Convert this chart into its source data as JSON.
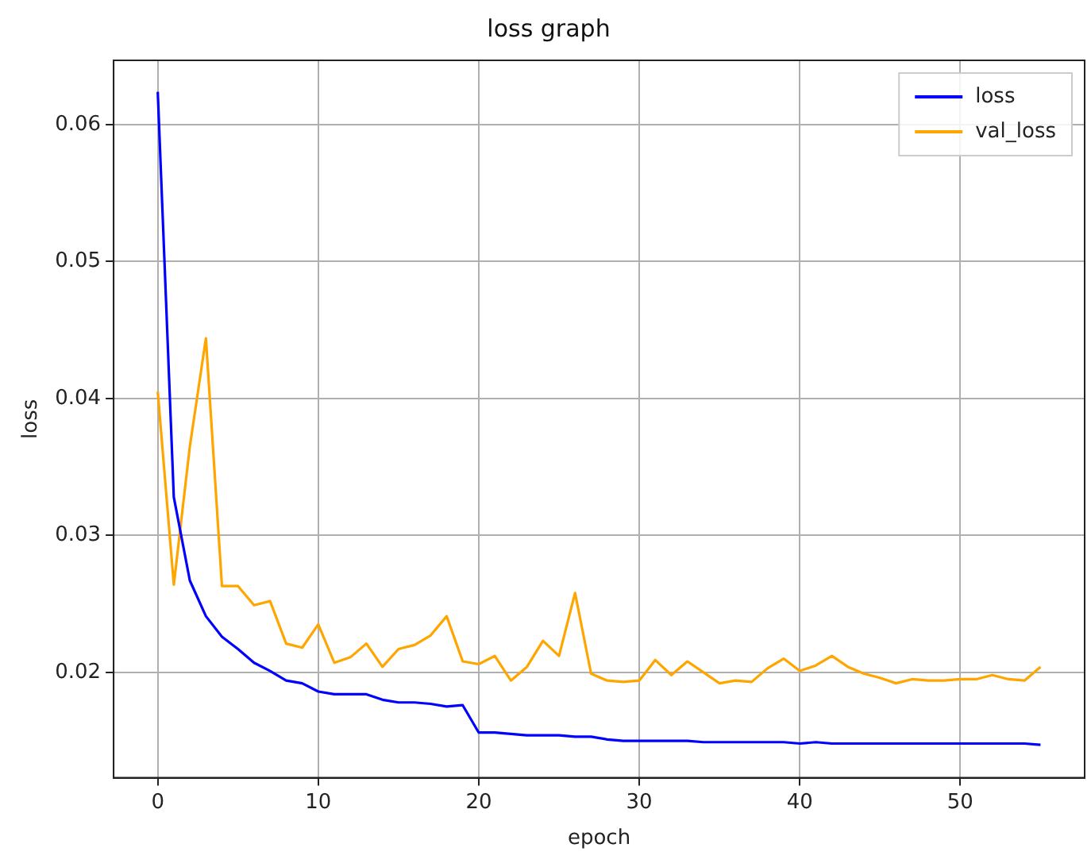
{
  "chart_data": {
    "type": "line",
    "title": "loss graph",
    "xlabel": "epoch",
    "ylabel": "loss",
    "x": [
      0,
      1,
      2,
      3,
      4,
      5,
      6,
      7,
      8,
      9,
      10,
      11,
      12,
      13,
      14,
      15,
      16,
      17,
      18,
      19,
      20,
      21,
      22,
      23,
      24,
      25,
      26,
      27,
      28,
      29,
      30,
      31,
      32,
      33,
      34,
      35,
      36,
      37,
      38,
      39,
      40,
      41,
      42,
      43,
      44,
      45,
      46,
      47,
      48,
      49,
      50,
      51,
      52,
      53,
      54,
      55
    ],
    "series": [
      {
        "name": "loss",
        "color": "#0000ff",
        "values": [
          0.0624,
          0.0328,
          0.0267,
          0.0241,
          0.0226,
          0.0217,
          0.0207,
          0.0201,
          0.0194,
          0.0192,
          0.0186,
          0.0184,
          0.0184,
          0.0184,
          0.018,
          0.0178,
          0.0178,
          0.0177,
          0.0175,
          0.0176,
          0.0156,
          0.0156,
          0.0155,
          0.0154,
          0.0154,
          0.0154,
          0.0153,
          0.0153,
          0.0151,
          0.015,
          0.015,
          0.015,
          0.015,
          0.015,
          0.0149,
          0.0149,
          0.0149,
          0.0149,
          0.0149,
          0.0149,
          0.0148,
          0.0149,
          0.0148,
          0.0148,
          0.0148,
          0.0148,
          0.0148,
          0.0148,
          0.0148,
          0.0148,
          0.0148,
          0.0148,
          0.0148,
          0.0148,
          0.0148,
          0.0147
        ]
      },
      {
        "name": "val_loss",
        "color": "#ffa500",
        "values": [
          0.0405,
          0.0264,
          0.0365,
          0.0444,
          0.0263,
          0.0263,
          0.0249,
          0.0252,
          0.0221,
          0.0218,
          0.0235,
          0.0207,
          0.0211,
          0.0221,
          0.0204,
          0.0217,
          0.022,
          0.0227,
          0.0241,
          0.0208,
          0.0206,
          0.0212,
          0.0194,
          0.0204,
          0.0223,
          0.0212,
          0.0258,
          0.0199,
          0.0194,
          0.0193,
          0.0194,
          0.0209,
          0.0198,
          0.0208,
          0.02,
          0.0192,
          0.0194,
          0.0193,
          0.0203,
          0.021,
          0.0201,
          0.0205,
          0.0212,
          0.0204,
          0.0199,
          0.0196,
          0.0192,
          0.0195,
          0.0194,
          0.0194,
          0.0195,
          0.0195,
          0.0198,
          0.0195,
          0.0194,
          0.0204
        ]
      }
    ],
    "xlim": [
      -2.75,
      57.75
    ],
    "xticks": [
      0,
      10,
      20,
      30,
      40,
      50
    ],
    "ylim": [
      0.0123,
      0.0647
    ],
    "yticks": [
      0.02,
      0.03,
      0.04,
      0.05,
      0.06
    ],
    "grid": true,
    "legend": "top right",
    "marker": "none",
    "line_style": "solid"
  }
}
